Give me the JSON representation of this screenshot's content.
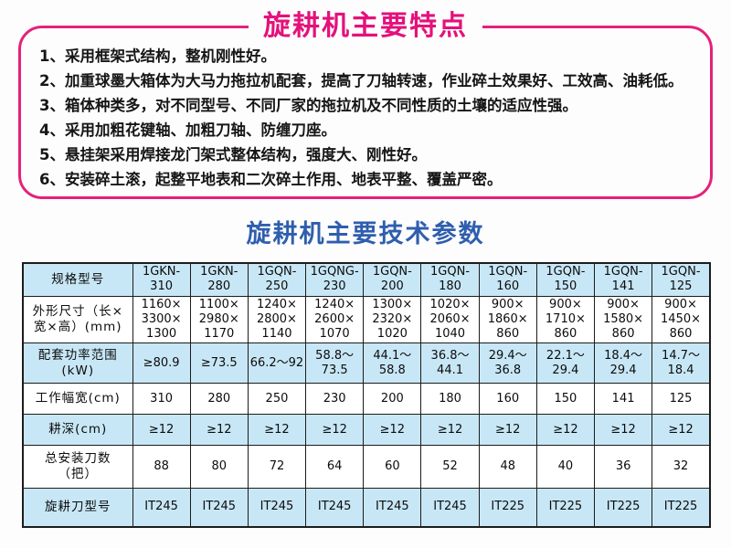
{
  "features_section": {
    "title": "旋耕机主要特点",
    "items": [
      "1、采用框架式结构，整机刚性好。",
      "2、加重球墨大箱体为大马力拖拉机配套，提高了刀轴转速，作业碎土效果好、工效高、油耗低。",
      "3、箱体种类多，对不同型号、不同厂家的拖拉机及不同性质的土壤的适应性强。",
      "4、采用加粗花键轴、加粗刀轴、防缠刀座。",
      "5、悬挂架采用焊接龙门架式整体结构，强度大、刚性好。",
      "6、安装碎土滚，起整平地表和二次碎土作用、地表平整、覆盖严密。"
    ]
  },
  "specs_section": {
    "title": "旋耕机主要技术参数",
    "table": {
      "header": [
        "规格型号",
        "1GKN-310",
        "1GKN-280",
        "1GQN-250",
        "1GQNG-230",
        "1GQN-200",
        "1GQN-180",
        "1GQN-160",
        "1GQN-150",
        "1GQN-141",
        "1GQN-125"
      ],
      "rows": [
        {
          "label": "外形尺寸（长×\n宽×高）(mm)",
          "values": [
            "1160×\n3300×\n1300",
            "1100×\n2980×\n1170",
            "1240×\n2800×\n1140",
            "1240×\n2600×\n1070",
            "1300×\n2320×\n1020",
            "1020×\n2060×\n1040",
            "900×\n1860×\n860",
            "900×\n1710×\n860",
            "900×\n1580×\n860",
            "900×\n1450×\n860"
          ]
        },
        {
          "label": "配套功率范围\n(kW)",
          "values": [
            "≥80.9",
            "≥73.5",
            "66.2～92",
            "58.8～\n73.5",
            "44.1～\n58.8",
            "36.8～\n44.1",
            "29.4～\n36.8",
            "22.1～\n29.4",
            "18.4～\n29.4",
            "14.7～\n18.4"
          ]
        },
        {
          "label": "工作幅宽(cm)",
          "values": [
            "310",
            "280",
            "250",
            "230",
            "200",
            "180",
            "160",
            "150",
            "141",
            "125"
          ]
        },
        {
          "label": "耕深(cm)",
          "values": [
            "≥12",
            "≥12",
            "≥12",
            "≥12",
            "≥12",
            "≥12",
            "≥12",
            "≥12",
            "≥12",
            "≥12"
          ]
        },
        {
          "label": "总安装刀数\n（把）",
          "values": [
            "88",
            "80",
            "72",
            "64",
            "60",
            "52",
            "48",
            "40",
            "36",
            "32"
          ]
        },
        {
          "label": "旋耕刀型号",
          "values": [
            "IT245",
            "IT245",
            "IT245",
            "IT245",
            "IT245",
            "IT245",
            "IT225",
            "IT225",
            "IT225",
            "IT225"
          ]
        }
      ]
    }
  },
  "colors": {
    "accent_pink": "#e5217c",
    "accent_blue": "#2f5eae",
    "cell_shade_blue": "#c8e7f6",
    "table_border": "#1c1c1c"
  }
}
